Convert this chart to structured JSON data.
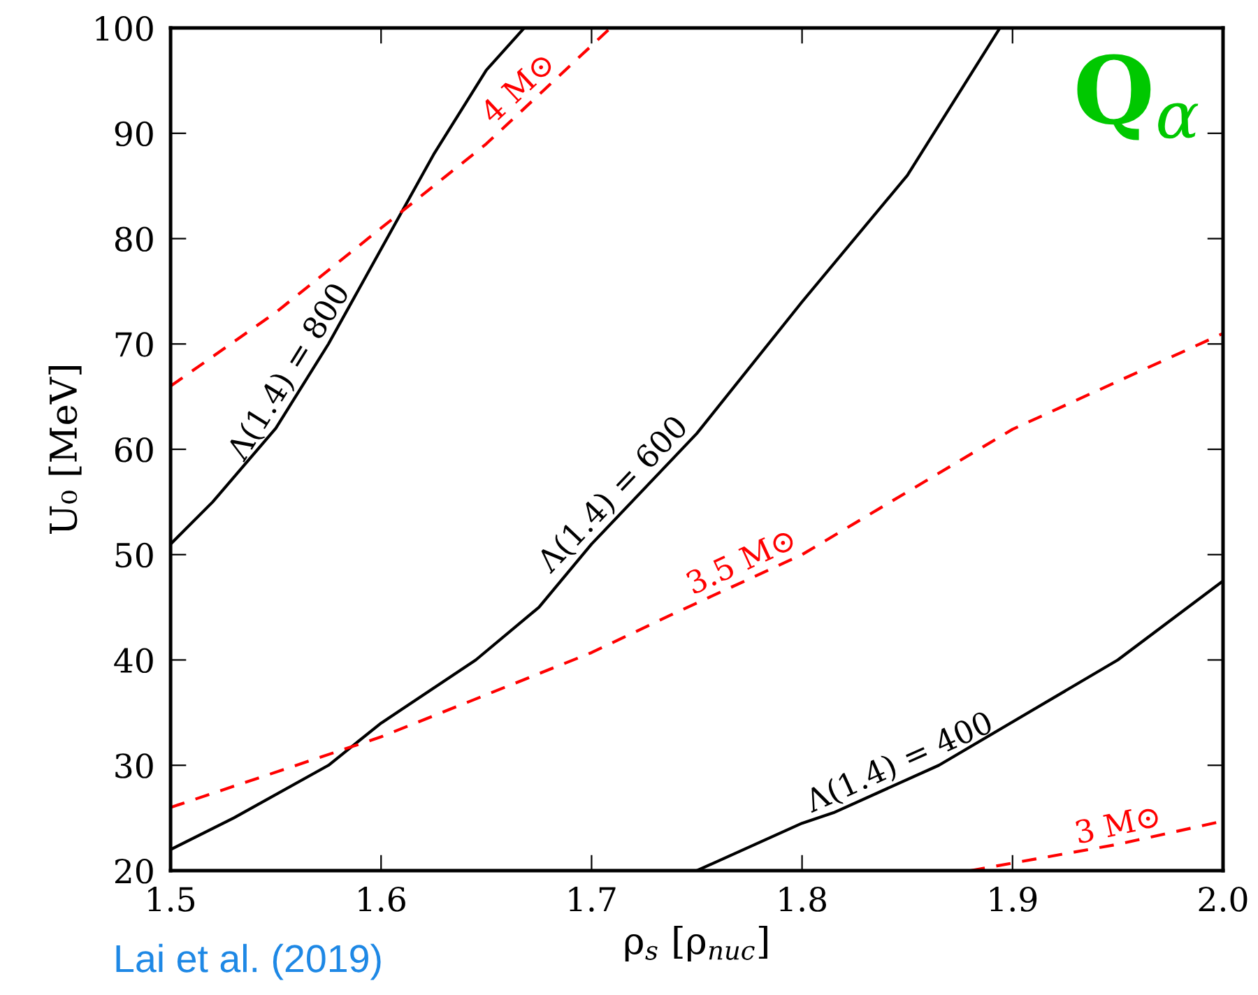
{
  "chart_data": {
    "type": "line",
    "xlabel": "ρ$_{s}$ [ρ$_{nuc}$]",
    "ylabel": "U₀ [MeV]",
    "xlim": [
      1.5,
      2.0
    ],
    "xticks": [
      1.5,
      1.6,
      1.7,
      1.8,
      1.9,
      {
        "value": 2.0,
        "label": "2.0"
      }
    ],
    "ylim": [
      20,
      100
    ],
    "yticks": [
      20,
      30,
      40,
      50,
      60,
      70,
      80,
      90,
      100
    ],
    "grid": false,
    "series": [
      {
        "name": "Λ(1.4) = 800",
        "color": "#000000",
        "line_style": "solid",
        "x": [
          1.5,
          1.52,
          1.55,
          1.575,
          1.6,
          1.625,
          1.65,
          1.668
        ],
        "values": [
          51,
          55,
          62,
          70,
          79,
          88,
          96,
          100
        ]
      },
      {
        "name": "Λ(1.4) = 600",
        "color": "#000000",
        "line_style": "solid",
        "x": [
          1.5,
          1.53,
          1.575,
          1.6,
          1.645,
          1.675,
          1.7,
          1.75,
          1.8,
          1.85,
          1.894
        ],
        "values": [
          22,
          25,
          30,
          34,
          40,
          45,
          51,
          61.5,
          74,
          86,
          100
        ]
      },
      {
        "name": "Λ(1.4) = 400",
        "color": "#000000",
        "line_style": "solid",
        "x": [
          1.75,
          1.8,
          1.815,
          1.865,
          1.95,
          2.0
        ],
        "values": [
          20,
          24.5,
          25.5,
          30,
          40,
          47.5
        ]
      },
      {
        "name": "4 M⊙",
        "color": "#ff0000",
        "line_style": "dashed",
        "x": [
          1.5,
          1.55,
          1.6,
          1.65,
          1.709
        ],
        "values": [
          66,
          73,
          81,
          89,
          100
        ]
      },
      {
        "name": "3.5 M⊙",
        "color": "#ff0000",
        "line_style": "dashed",
        "x": [
          1.5,
          1.6,
          1.7,
          1.738,
          1.8,
          1.9,
          2.0
        ],
        "values": [
          26,
          32.7,
          40.7,
          44.3,
          50,
          61.9,
          71
        ]
      },
      {
        "name": "3 M⊙",
        "color": "#ff0000",
        "line_style": "dashed",
        "x": [
          1.88,
          1.95,
          2.0
        ],
        "values": [
          20,
          22.5,
          24.7
        ]
      }
    ],
    "annotations": [
      "Q$_{α}$",
      "Lai et al. (2019)"
    ]
  }
}
